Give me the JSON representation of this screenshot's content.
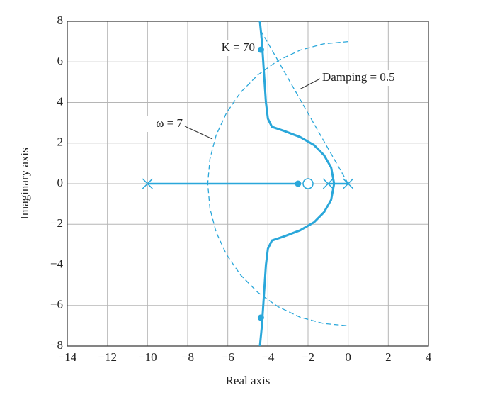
{
  "chart_data": {
    "type": "line",
    "xlabel": "Real axis",
    "ylabel": "Imaginary axis",
    "xlim": [
      -14,
      4
    ],
    "ylim": [
      -8,
      8
    ],
    "xticks": [
      {
        "value": -14,
        "label": "−14"
      },
      {
        "value": -12,
        "label": "−12"
      },
      {
        "value": -10,
        "label": "−10"
      },
      {
        "value": -8,
        "label": "−8"
      },
      {
        "value": -6,
        "label": "−6"
      },
      {
        "value": -4,
        "label": "−4"
      },
      {
        "value": -2,
        "label": "−2"
      },
      0,
      2,
      4
    ],
    "yticks": [
      {
        "value": -8,
        "label": "−8"
      },
      {
        "value": -6,
        "label": "−6"
      },
      {
        "value": -4,
        "label": "−4"
      },
      {
        "value": -2,
        "label": "−2"
      },
      0,
      2,
      4,
      6,
      8
    ],
    "grid": true,
    "series": [
      {
        "color": "#2aa7da",
        "line": "dashed",
        "width": 1.3,
        "marker": "none",
        "x": [
          0,
          -1.22,
          -2.39,
          -3.5,
          -4.5,
          -5.36,
          -6.06,
          -6.58,
          -6.89,
          -7,
          -6.89,
          -6.58,
          -6.06,
          -5.36,
          -4.5,
          -3.5,
          -2.39,
          -1.22,
          0
        ],
        "values": [
          7,
          6.89,
          6.58,
          6.06,
          5.36,
          4.5,
          3.5,
          2.39,
          1.22,
          0,
          -1.22,
          -2.39,
          -3.5,
          -4.5,
          -5.36,
          -6.06,
          -6.58,
          -6.89,
          -7
        ]
      },
      {
        "color": "#2aa7da",
        "line": "dashed",
        "width": 1.3,
        "marker": "none",
        "x": [
          0,
          -4.3
        ],
        "values": [
          0,
          7.45
        ]
      },
      {
        "color": "#2aa7da",
        "line": "solid",
        "width": 3,
        "marker": "none",
        "x": [
          -0.7,
          -0.85,
          -1.2,
          -1.7,
          -2.4,
          -3.2,
          -3.8,
          -4.0,
          -4.1,
          -4.2,
          -4.3,
          -4.4
        ],
        "values": [
          0,
          0.8,
          1.4,
          1.9,
          2.3,
          2.6,
          2.8,
          3.2,
          4,
          5.5,
          7,
          8
        ]
      },
      {
        "color": "#2aa7da",
        "line": "solid",
        "width": 3,
        "marker": "none",
        "x": [
          -0.7,
          -0.85,
          -1.2,
          -1.7,
          -2.4,
          -3.2,
          -3.8,
          -4.0,
          -4.1,
          -4.2,
          -4.3,
          -4.4
        ],
        "values": [
          0,
          -0.8,
          -1.4,
          -1.9,
          -2.3,
          -2.6,
          -2.8,
          -3.2,
          -4,
          -5.5,
          -7,
          -8
        ]
      },
      {
        "color": "#2aa7da",
        "line": "solid",
        "width": 2.5,
        "marker": "none",
        "x": [
          -10,
          -2.5
        ],
        "values": [
          0,
          0
        ]
      },
      {
        "color": "#2aa7da",
        "line": "solid",
        "width": 2.5,
        "marker": "none",
        "x": [
          -1,
          0
        ],
        "values": [
          0,
          0
        ]
      },
      {
        "color": "#2aa7da",
        "line": "none",
        "width": 1.5,
        "marker": "x",
        "x": [
          -10,
          -1,
          0
        ],
        "values": [
          0,
          0,
          0
        ]
      },
      {
        "color": "#2aa7da",
        "line": "none",
        "width": 1.5,
        "marker": "o",
        "x": [
          -2
        ],
        "values": [
          0
        ]
      },
      {
        "color": "#2aa7da",
        "line": "none",
        "width": 1.5,
        "marker": "dot",
        "x": [
          -4.35,
          -4.35,
          -2.5
        ],
        "values": [
          6.6,
          -6.6,
          0
        ]
      }
    ],
    "annotations": [
      "K = 70",
      "Damping = 0.5",
      "ω = 7"
    ]
  }
}
